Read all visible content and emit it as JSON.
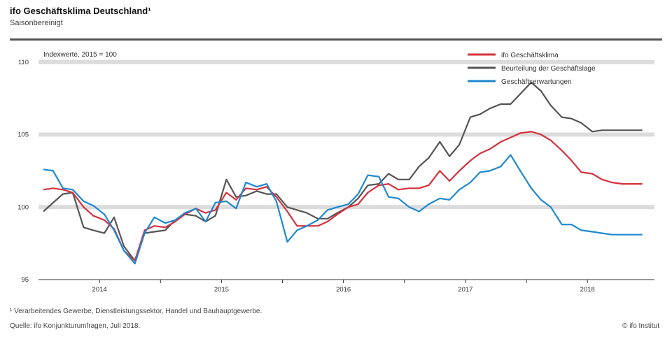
{
  "header": {
    "title": "ifo Geschäftsklima Deutschland¹",
    "subtitle": "Saisonbereinigt"
  },
  "footer": {
    "note": "¹ Verarbeitendes Gewerbe, Dienstleistungssektor, Handel und Bauhauptgewerbe.",
    "source": "Quelle: ifo Konjunkturumfragen, Juli 2018.",
    "credit": "© ifo Institut"
  },
  "chart_data": {
    "type": "line",
    "annotation": "Indexwerte, 2015 = 100",
    "ylim": [
      95,
      111
    ],
    "yticks": [
      95,
      100,
      105,
      110
    ],
    "ytick_labels": [
      "95",
      "100",
      "105",
      "110"
    ],
    "xlim": [
      2013.5,
      2018.55
    ],
    "xticks": [
      2014,
      2015,
      2016,
      2017,
      2018
    ],
    "xtick_labels": [
      "2014",
      "2015",
      "2016",
      "2017",
      "2018"
    ],
    "legend_position": "top-right",
    "grid": "horizontal bands",
    "series": [
      {
        "name": "ifo Geschäftsklima",
        "color": "#d6313c",
        "x": [
          2013.54,
          2013.62,
          2013.7,
          2013.78,
          2013.87,
          2013.95,
          2014.04,
          2014.12,
          2014.2,
          2014.29,
          2014.37,
          2014.45,
          2014.54,
          2014.62,
          2014.7,
          2014.79,
          2014.87,
          2014.95,
          2015.04,
          2015.12,
          2015.2,
          2015.29,
          2015.37,
          2015.45,
          2015.54,
          2015.62,
          2015.7,
          2015.79,
          2015.87,
          2015.95,
          2016.04,
          2016.12,
          2016.2,
          2016.29,
          2016.37,
          2016.45,
          2016.54,
          2016.62,
          2016.7,
          2016.79,
          2016.87,
          2016.95,
          2017.04,
          2017.12,
          2017.2,
          2017.29,
          2017.37,
          2017.45,
          2017.54,
          2017.62,
          2017.7,
          2017.79,
          2017.87,
          2017.95,
          2018.04,
          2018.12,
          2018.2,
          2018.29,
          2018.37,
          2018.45
        ],
        "values": [
          101.2,
          101.3,
          101.2,
          101.0,
          100.0,
          99.4,
          99.1,
          98.5,
          97.0,
          96.3,
          98.4,
          98.7,
          98.6,
          99.0,
          99.5,
          99.9,
          99.6,
          99.8,
          101.0,
          100.5,
          101.3,
          101.2,
          101.4,
          100.7,
          99.7,
          98.7,
          98.7,
          98.7,
          99.0,
          99.5,
          100.0,
          100.2,
          101.0,
          101.5,
          101.6,
          101.2,
          101.3,
          101.3,
          101.5,
          102.5,
          101.8,
          102.5,
          103.2,
          103.7,
          104.0,
          104.5,
          104.8,
          105.1,
          105.2,
          105.0,
          104.6,
          103.9,
          103.2,
          102.4,
          102.3,
          101.9,
          101.7,
          101.6,
          101.6,
          101.6
        ]
      },
      {
        "name": "Beurteilung der Geschäftslage",
        "color": "#555555",
        "x": [
          2013.54,
          2013.62,
          2013.7,
          2013.78,
          2013.87,
          2013.95,
          2014.04,
          2014.12,
          2014.2,
          2014.29,
          2014.37,
          2014.45,
          2014.54,
          2014.62,
          2014.7,
          2014.79,
          2014.87,
          2014.95,
          2015.04,
          2015.12,
          2015.2,
          2015.29,
          2015.37,
          2015.45,
          2015.54,
          2015.62,
          2015.7,
          2015.79,
          2015.87,
          2015.95,
          2016.04,
          2016.12,
          2016.2,
          2016.29,
          2016.37,
          2016.45,
          2016.54,
          2016.62,
          2016.7,
          2016.79,
          2016.87,
          2016.95,
          2017.04,
          2017.12,
          2017.2,
          2017.29,
          2017.37,
          2017.45,
          2017.54,
          2017.62,
          2017.7,
          2017.79,
          2017.87,
          2017.95,
          2018.04,
          2018.12,
          2018.2,
          2018.29,
          2018.37,
          2018.45
        ],
        "values": [
          99.7,
          100.3,
          100.9,
          101.0,
          98.6,
          98.4,
          98.2,
          99.3,
          97.3,
          96.3,
          98.2,
          98.3,
          98.4,
          99.1,
          99.5,
          99.4,
          99.0,
          99.4,
          101.9,
          100.7,
          100.8,
          101.1,
          100.9,
          100.9,
          100.0,
          99.8,
          99.6,
          99.2,
          99.2,
          99.6,
          100.0,
          100.6,
          101.5,
          101.6,
          102.3,
          101.9,
          101.9,
          102.8,
          103.4,
          104.5,
          103.5,
          104.3,
          106.2,
          106.4,
          106.8,
          107.1,
          107.1,
          107.8,
          108.6,
          108.0,
          107.0,
          106.2,
          106.1,
          105.8,
          105.2,
          105.3,
          105.3,
          105.3,
          105.3,
          105.3
        ]
      },
      {
        "name": "Geschäftserwartungen",
        "color": "#1e88d2",
        "x": [
          2013.54,
          2013.62,
          2013.7,
          2013.78,
          2013.87,
          2013.95,
          2014.04,
          2014.12,
          2014.2,
          2014.29,
          2014.37,
          2014.45,
          2014.54,
          2014.62,
          2014.7,
          2014.79,
          2014.87,
          2014.95,
          2015.04,
          2015.12,
          2015.2,
          2015.29,
          2015.37,
          2015.45,
          2015.54,
          2015.62,
          2015.7,
          2015.79,
          2015.87,
          2015.95,
          2016.04,
          2016.12,
          2016.2,
          2016.29,
          2016.37,
          2016.45,
          2016.54,
          2016.62,
          2016.7,
          2016.79,
          2016.87,
          2016.95,
          2017.04,
          2017.12,
          2017.2,
          2017.29,
          2017.37,
          2017.45,
          2017.54,
          2017.62,
          2017.7,
          2017.79,
          2017.87,
          2017.95,
          2018.04,
          2018.12,
          2018.2,
          2018.29,
          2018.37,
          2018.45
        ],
        "values": [
          102.6,
          102.5,
          101.3,
          101.2,
          100.4,
          100.1,
          99.5,
          98.4,
          97.0,
          96.1,
          98.2,
          99.3,
          98.9,
          99.1,
          99.6,
          99.9,
          99.0,
          100.3,
          100.4,
          99.9,
          101.7,
          101.4,
          101.6,
          100.4,
          97.6,
          98.4,
          98.7,
          99.1,
          99.8,
          100.0,
          100.2,
          100.9,
          102.2,
          102.1,
          100.7,
          100.6,
          100.0,
          99.7,
          100.2,
          100.6,
          100.5,
          101.2,
          101.7,
          102.4,
          102.5,
          102.8,
          103.6,
          102.5,
          101.3,
          100.5,
          100.0,
          98.8,
          98.8,
          98.4,
          98.3,
          98.2,
          98.1,
          98.1,
          98.1,
          98.1
        ]
      }
    ]
  }
}
